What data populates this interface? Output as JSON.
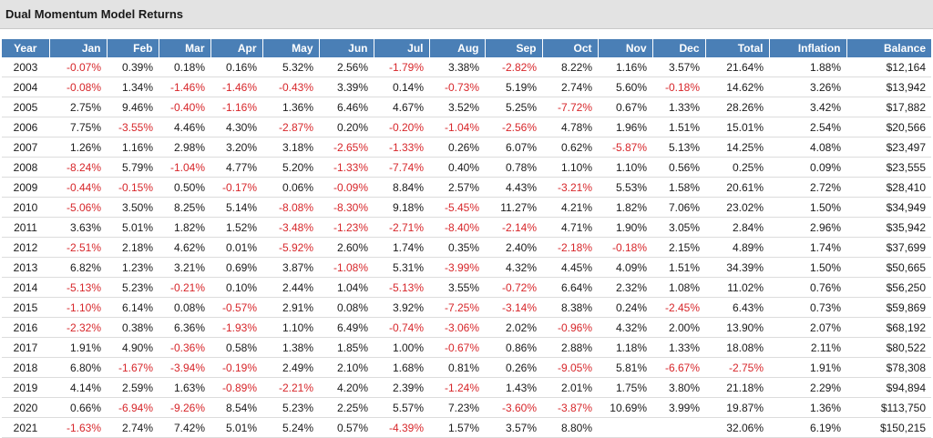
{
  "panel": {
    "title": "Dual Momentum Model Returns"
  },
  "colors": {
    "header_bg": "#4a7fb6",
    "negative": "#d7262a"
  },
  "table": {
    "columns": [
      "Year",
      "Jan",
      "Feb",
      "Mar",
      "Apr",
      "May",
      "Jun",
      "Jul",
      "Aug",
      "Sep",
      "Oct",
      "Nov",
      "Dec",
      "Total",
      "Inflation",
      "Balance"
    ],
    "rows": [
      [
        "2003",
        "-0.07%",
        "0.39%",
        "0.18%",
        "0.16%",
        "5.32%",
        "2.56%",
        "-1.79%",
        "3.38%",
        "-2.82%",
        "8.22%",
        "1.16%",
        "3.57%",
        "21.64%",
        "1.88%",
        "$12,164"
      ],
      [
        "2004",
        "-0.08%",
        "1.34%",
        "-1.46%",
        "-1.46%",
        "-0.43%",
        "3.39%",
        "0.14%",
        "-0.73%",
        "5.19%",
        "2.74%",
        "5.60%",
        "-0.18%",
        "14.62%",
        "3.26%",
        "$13,942"
      ],
      [
        "2005",
        "2.75%",
        "9.46%",
        "-0.40%",
        "-1.16%",
        "1.36%",
        "6.46%",
        "4.67%",
        "3.52%",
        "5.25%",
        "-7.72%",
        "0.67%",
        "1.33%",
        "28.26%",
        "3.42%",
        "$17,882"
      ],
      [
        "2006",
        "7.75%",
        "-3.55%",
        "4.46%",
        "4.30%",
        "-2.87%",
        "0.20%",
        "-0.20%",
        "-1.04%",
        "-2.56%",
        "4.78%",
        "1.96%",
        "1.51%",
        "15.01%",
        "2.54%",
        "$20,566"
      ],
      [
        "2007",
        "1.26%",
        "1.16%",
        "2.98%",
        "3.20%",
        "3.18%",
        "-2.65%",
        "-1.33%",
        "0.26%",
        "6.07%",
        "0.62%",
        "-5.87%",
        "5.13%",
        "14.25%",
        "4.08%",
        "$23,497"
      ],
      [
        "2008",
        "-8.24%",
        "5.79%",
        "-1.04%",
        "4.77%",
        "5.20%",
        "-1.33%",
        "-7.74%",
        "0.40%",
        "0.78%",
        "1.10%",
        "1.10%",
        "0.56%",
        "0.25%",
        "0.09%",
        "$23,555"
      ],
      [
        "2009",
        "-0.44%",
        "-0.15%",
        "0.50%",
        "-0.17%",
        "0.06%",
        "-0.09%",
        "8.84%",
        "2.57%",
        "4.43%",
        "-3.21%",
        "5.53%",
        "1.58%",
        "20.61%",
        "2.72%",
        "$28,410"
      ],
      [
        "2010",
        "-5.06%",
        "3.50%",
        "8.25%",
        "5.14%",
        "-8.08%",
        "-8.30%",
        "9.18%",
        "-5.45%",
        "11.27%",
        "4.21%",
        "1.82%",
        "7.06%",
        "23.02%",
        "1.50%",
        "$34,949"
      ],
      [
        "2011",
        "3.63%",
        "5.01%",
        "1.82%",
        "1.52%",
        "-3.48%",
        "-1.23%",
        "-2.71%",
        "-8.40%",
        "-2.14%",
        "4.71%",
        "1.90%",
        "3.05%",
        "2.84%",
        "2.96%",
        "$35,942"
      ],
      [
        "2012",
        "-2.51%",
        "2.18%",
        "4.62%",
        "0.01%",
        "-5.92%",
        "2.60%",
        "1.74%",
        "0.35%",
        "2.40%",
        "-2.18%",
        "-0.18%",
        "2.15%",
        "4.89%",
        "1.74%",
        "$37,699"
      ],
      [
        "2013",
        "6.82%",
        "1.23%",
        "3.21%",
        "0.69%",
        "3.87%",
        "-1.08%",
        "5.31%",
        "-3.99%",
        "4.32%",
        "4.45%",
        "4.09%",
        "1.51%",
        "34.39%",
        "1.50%",
        "$50,665"
      ],
      [
        "2014",
        "-5.13%",
        "5.23%",
        "-0.21%",
        "0.10%",
        "2.44%",
        "1.04%",
        "-5.13%",
        "3.55%",
        "-0.72%",
        "6.64%",
        "2.32%",
        "1.08%",
        "11.02%",
        "0.76%",
        "$56,250"
      ],
      [
        "2015",
        "-1.10%",
        "6.14%",
        "0.08%",
        "-0.57%",
        "2.91%",
        "0.08%",
        "3.92%",
        "-7.25%",
        "-3.14%",
        "8.38%",
        "0.24%",
        "-2.45%",
        "6.43%",
        "0.73%",
        "$59,869"
      ],
      [
        "2016",
        "-2.32%",
        "0.38%",
        "6.36%",
        "-1.93%",
        "1.10%",
        "6.49%",
        "-0.74%",
        "-3.06%",
        "2.02%",
        "-0.96%",
        "4.32%",
        "2.00%",
        "13.90%",
        "2.07%",
        "$68,192"
      ],
      [
        "2017",
        "1.91%",
        "4.90%",
        "-0.36%",
        "0.58%",
        "1.38%",
        "1.85%",
        "1.00%",
        "-0.67%",
        "0.86%",
        "2.88%",
        "1.18%",
        "1.33%",
        "18.08%",
        "2.11%",
        "$80,522"
      ],
      [
        "2018",
        "6.80%",
        "-1.67%",
        "-3.94%",
        "-0.19%",
        "2.49%",
        "2.10%",
        "1.68%",
        "0.81%",
        "0.26%",
        "-9.05%",
        "5.81%",
        "-6.67%",
        "-2.75%",
        "1.91%",
        "$78,308"
      ],
      [
        "2019",
        "4.14%",
        "2.59%",
        "1.63%",
        "-0.89%",
        "-2.21%",
        "4.20%",
        "2.39%",
        "-1.24%",
        "1.43%",
        "2.01%",
        "1.75%",
        "3.80%",
        "21.18%",
        "2.29%",
        "$94,894"
      ],
      [
        "2020",
        "0.66%",
        "-6.94%",
        "-9.26%",
        "8.54%",
        "5.23%",
        "2.25%",
        "5.57%",
        "7.23%",
        "-3.60%",
        "-3.87%",
        "10.69%",
        "3.99%",
        "19.87%",
        "1.36%",
        "$113,750"
      ],
      [
        "2021",
        "-1.63%",
        "2.74%",
        "7.42%",
        "5.01%",
        "5.24%",
        "0.57%",
        "-4.39%",
        "1.57%",
        "3.57%",
        "8.80%",
        "",
        "",
        "32.06%",
        "6.19%",
        "$150,215"
      ]
    ]
  }
}
